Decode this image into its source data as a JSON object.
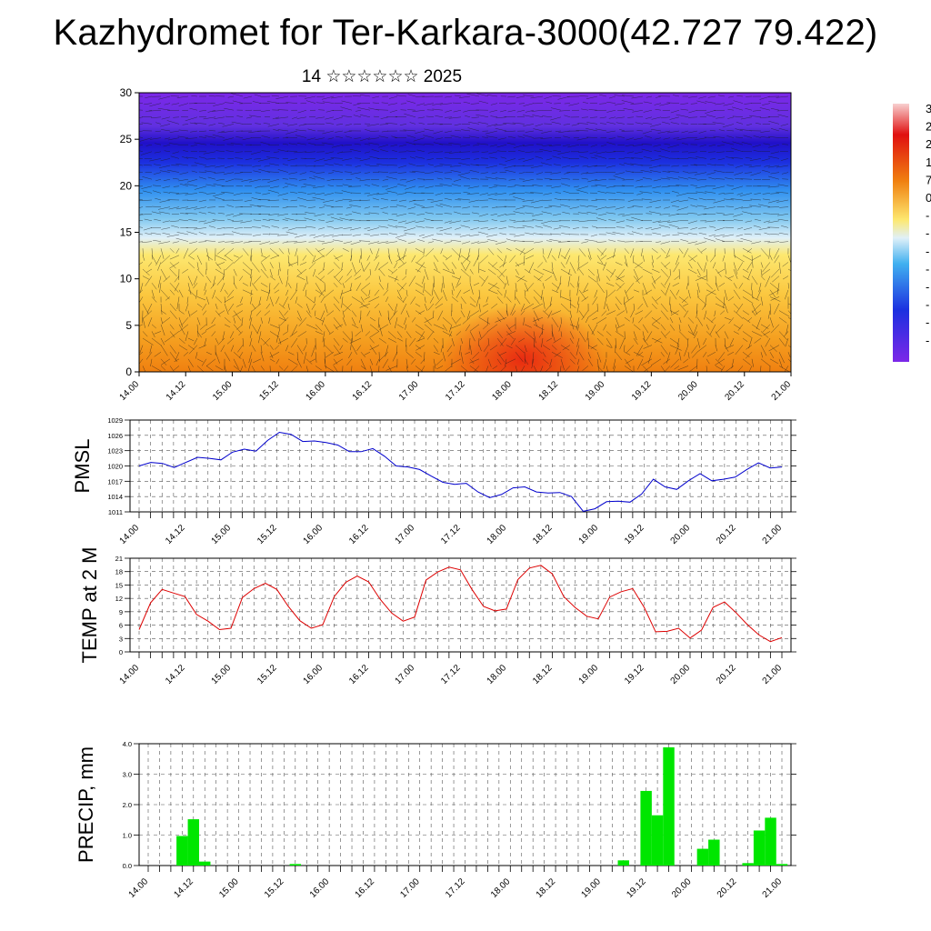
{
  "header": {
    "title": "Kazhydromet for Ter-Karkara-3000(42.727 79.422)",
    "subtitle": "14 ☆☆☆☆☆☆ 2025"
  },
  "colors": {
    "pmsl_line": "#0000cc",
    "temp_line": "#dd0000",
    "precip_bar": "#00e600",
    "grid": "#555555"
  },
  "chart_data": [
    {
      "id": "cross-section",
      "type": "heatmap",
      "description_visible": "colored field with wind vectors",
      "ylim": [
        0,
        30
      ],
      "yticks": [
        "0",
        "5",
        "10",
        "15",
        "20",
        "25",
        "30"
      ],
      "xticks": [
        "14.00",
        "14.12",
        "15.00",
        "15.12",
        "16.00",
        "16.12",
        "17.00",
        "17.12",
        "18.00",
        "18.12",
        "19.00",
        "19.12",
        "20.00",
        "20.12",
        "21.00"
      ],
      "colorbar_labels": [
        "3",
        "2",
        "2",
        "1",
        "7",
        "0",
        "-",
        "-",
        "-",
        "-",
        "-",
        "-",
        "-",
        "-"
      ]
    },
    {
      "id": "pmsl",
      "type": "line",
      "ylabel": "PMSL",
      "ylim": [
        1011,
        1029
      ],
      "yticks": [
        "1011",
        "1014",
        "1017",
        "1020",
        "1023",
        "1026",
        "1029"
      ],
      "xticks": [
        "14.00",
        "14.12",
        "15.00",
        "15.12",
        "16.00",
        "16.12",
        "17.00",
        "17.12",
        "18.00",
        "18.12",
        "19.00",
        "19.12",
        "20.00",
        "20.12",
        "21.00"
      ],
      "values": [
        1020.0,
        1020.7,
        1020.5,
        1019.7,
        1020.7,
        1021.7,
        1021.5,
        1021.2,
        1022.7,
        1023.3,
        1022.9,
        1025.0,
        1026.6,
        1026.2,
        1024.8,
        1024.9,
        1024.6,
        1024.1,
        1022.8,
        1022.8,
        1023.4,
        1021.9,
        1020.0,
        1019.8,
        1019.3,
        1018.0,
        1016.8,
        1016.4,
        1016.6,
        1014.9,
        1013.8,
        1014.4,
        1015.7,
        1015.9,
        1014.9,
        1014.7,
        1014.8,
        1014.0,
        1011.1,
        1011.6,
        1013.0,
        1013.1,
        1012.9,
        1014.5,
        1017.4,
        1015.9,
        1015.4,
        1017.1,
        1018.5,
        1017.1,
        1017.4,
        1017.8,
        1019.3,
        1020.6,
        1019.6,
        1019.8
      ]
    },
    {
      "id": "temp",
      "type": "line",
      "ylabel": "TEMP at 2 M",
      "ylim": [
        0,
        21
      ],
      "yticks": [
        "0",
        "3",
        "6",
        "9",
        "12",
        "15",
        "18",
        "21"
      ],
      "xticks": [
        "14.00",
        "14.12",
        "15.00",
        "15.12",
        "16.00",
        "16.12",
        "17.00",
        "17.12",
        "18.00",
        "18.12",
        "19.00",
        "19.12",
        "20.00",
        "20.12",
        "21.00"
      ],
      "values": [
        5.0,
        11.0,
        14.0,
        13.2,
        12.4,
        8.4,
        6.9,
        5.0,
        5.3,
        12.2,
        14.2,
        15.4,
        14.0,
        10.2,
        7.0,
        5.3,
        6.1,
        12.4,
        15.6,
        17.0,
        15.7,
        11.8,
        8.7,
        6.9,
        7.8,
        16.1,
        17.9,
        19.0,
        18.4,
        14.0,
        10.2,
        9.2,
        9.6,
        16.2,
        18.8,
        19.4,
        17.5,
        12.4,
        9.9,
        8.0,
        7.4,
        12.3,
        13.5,
        14.2,
        10.0,
        4.5,
        4.6,
        5.3,
        3.1,
        4.9,
        10.0,
        11.2,
        8.8,
        6.1,
        3.8,
        2.3,
        3.2
      ]
    },
    {
      "id": "precip",
      "type": "bar",
      "ylabel": "PRECIP, mm",
      "ylim": [
        0,
        4.0
      ],
      "yticks": [
        "0.0",
        "1.0",
        "2.0",
        "3.0",
        "4.0"
      ],
      "xticks": [
        "14.00",
        "14.12",
        "15.00",
        "15.12",
        "16.00",
        "16.12",
        "17.00",
        "17.12",
        "18.00",
        "18.12",
        "19.00",
        "19.12",
        "20.00",
        "20.12",
        "21.00"
      ],
      "values": [
        0,
        0,
        0,
        0.97,
        1.52,
        0.13,
        0,
        0,
        0,
        0,
        0,
        0,
        0,
        0.05,
        0,
        0,
        0,
        0,
        0,
        0,
        0,
        0,
        0,
        0,
        0,
        0,
        0,
        0,
        0,
        0,
        0,
        0,
        0,
        0,
        0,
        0,
        0,
        0,
        0,
        0,
        0,
        0,
        0.17,
        0,
        2.45,
        1.65,
        3.88,
        0,
        0,
        0.55,
        0.85,
        0,
        0,
        0.08,
        1.15,
        1.57,
        0.05
      ]
    }
  ]
}
